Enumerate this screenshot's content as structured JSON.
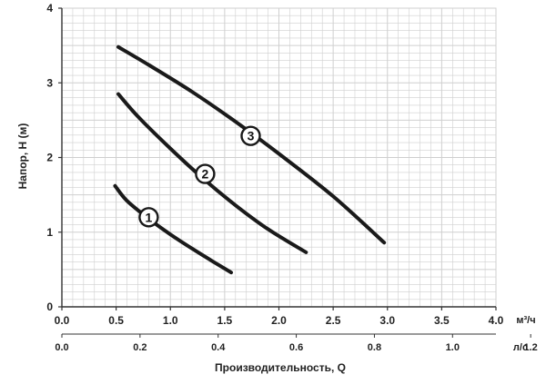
{
  "chart_data": {
    "type": "line",
    "ylabel": "Напор, H (м)",
    "xlabel": "Производительность, Q",
    "x_unit_primary": "м³/ч",
    "x_unit_secondary": "л/с",
    "xlim": [
      0,
      4
    ],
    "ylim": [
      0,
      4
    ],
    "x_ticks": [
      "0.0",
      "0.5",
      "1.0",
      "1.5",
      "2.0",
      "2.5",
      "3.0",
      "3.5",
      "4.0"
    ],
    "y_ticks": [
      "0",
      "1",
      "2",
      "3",
      "4"
    ],
    "x2_ticks": [
      {
        "value": 0.0,
        "label": "0.0"
      },
      {
        "value": 0.2,
        "label": "0.2"
      },
      {
        "value": 0.4,
        "label": "0.4"
      },
      {
        "value": 0.6,
        "label": "0.6"
      },
      {
        "value": 0.8,
        "label": "0.8"
      },
      {
        "value": 1.0,
        "label": "1.0"
      },
      {
        "value": 1.2,
        "label": "1.2"
      }
    ],
    "x2_factor": 3.6,
    "grid": true,
    "colors": {
      "curve": "#1a1a1a",
      "grid": "#cfcfcf",
      "axis": "#333333"
    },
    "series": [
      {
        "name": "1",
        "x": [
          0.49,
          0.6,
          0.8,
          1.0,
          1.2,
          1.4,
          1.56
        ],
        "y": [
          1.62,
          1.42,
          1.18,
          0.97,
          0.78,
          0.6,
          0.46
        ],
        "label_at": [
          0.8,
          1.2
        ]
      },
      {
        "name": "2",
        "x": [
          0.52,
          0.7,
          1.0,
          1.3,
          1.6,
          1.9,
          2.25
        ],
        "y": [
          2.85,
          2.55,
          2.12,
          1.72,
          1.36,
          1.04,
          0.73
        ],
        "label_at": [
          1.32,
          1.78
        ]
      },
      {
        "name": "3",
        "x": [
          0.52,
          0.8,
          1.2,
          1.6,
          2.0,
          2.5,
          2.97
        ],
        "y": [
          3.48,
          3.24,
          2.88,
          2.48,
          2.05,
          1.48,
          0.86
        ],
        "label_at": [
          1.74,
          2.29
        ]
      }
    ]
  }
}
